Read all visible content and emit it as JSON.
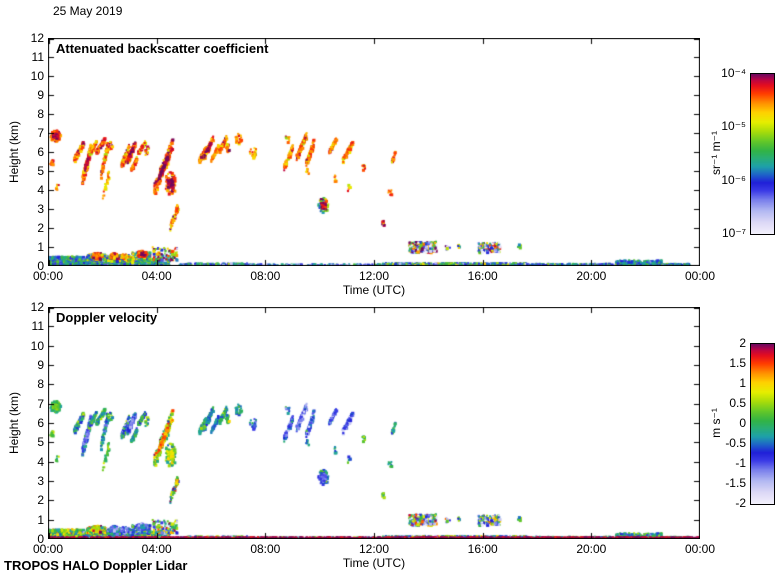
{
  "meta": {
    "date": "25 May 2019",
    "footer": "TROPOS HALO Doppler Lidar"
  },
  "chart_data": {
    "type": "heatmap",
    "panels": [
      {
        "title": "Attenuated backscatter coefficient",
        "xlabel": "Time (UTC)",
        "ylabel": "Height (km)",
        "value_field": "bs",
        "xlim_hours": [
          0,
          24
        ],
        "ylim_km": [
          0,
          12
        ],
        "x_ticks": [
          "00:00",
          "04:00",
          "08:00",
          "12:00",
          "16:00",
          "20:00",
          "00:00"
        ],
        "y_ticks": [
          "0",
          "1",
          "2",
          "3",
          "4",
          "5",
          "6",
          "7",
          "8",
          "9",
          "10",
          "11",
          "12"
        ],
        "colorbar": {
          "unit": "sr⁻¹ m⁻¹",
          "scale": "log10",
          "tick_labels": [
            "10⁻⁴",
            "10⁻⁵",
            "10⁻⁶",
            "10⁻⁷"
          ],
          "vmin": -7,
          "vmax": -4
        }
      },
      {
        "title": "Doppler velocity",
        "xlabel": "Time (UTC)",
        "ylabel": "Height (km)",
        "value_field": "vel",
        "xlim_hours": [
          0,
          24
        ],
        "ylim_km": [
          0,
          12
        ],
        "x_ticks": [
          "00:00",
          "04:00",
          "08:00",
          "12:00",
          "16:00",
          "20:00",
          "00:00"
        ],
        "y_ticks": [
          "0",
          "1",
          "2",
          "3",
          "4",
          "5",
          "6",
          "7",
          "8",
          "9",
          "10",
          "11",
          "12"
        ],
        "colorbar": {
          "unit": "m s⁻¹",
          "scale": "linear",
          "tick_labels": [
            "2",
            "1.5",
            "1",
            "0.5",
            "0",
            "-0.5",
            "-1",
            "-1.5",
            "-2"
          ],
          "vmin": -2,
          "vmax": 2
        }
      }
    ],
    "colormap_stops": [
      [
        0.0,
        "#f2f0fc"
      ],
      [
        0.07,
        "#dcd8f6"
      ],
      [
        0.14,
        "#b4baf2"
      ],
      [
        0.21,
        "#7a80ec"
      ],
      [
        0.27,
        "#3a3ae6"
      ],
      [
        0.32,
        "#2020d8"
      ],
      [
        0.37,
        "#1e64c8"
      ],
      [
        0.42,
        "#1ea0aa"
      ],
      [
        0.47,
        "#28ae78"
      ],
      [
        0.52,
        "#32b446"
      ],
      [
        0.58,
        "#64c828"
      ],
      [
        0.64,
        "#a8dc0a"
      ],
      [
        0.7,
        "#e6ee00"
      ],
      [
        0.76,
        "#ffd200"
      ],
      [
        0.82,
        "#ff9000"
      ],
      [
        0.88,
        "#ff3c00"
      ],
      [
        0.93,
        "#e60e1e"
      ],
      [
        0.97,
        "#b40448"
      ],
      [
        1.0,
        "#70085e"
      ]
    ],
    "features": [
      {
        "k": "b",
        "box": [
          0.08,
          6.55,
          0.45,
          7.15
        ],
        "n": 110,
        "bs": -4.4,
        "vel": 0.0,
        "velv": 0.3,
        "core": {
          "n": 28,
          "bs": -4.05,
          "vel": 0.4
        }
      },
      {
        "k": "p",
        "box": [
          0.08,
          5.25,
          0.2,
          5.65
        ],
        "n": 14,
        "bs": -4.5,
        "vel": 0.2
      },
      {
        "k": "p",
        "box": [
          0.28,
          4.0,
          0.42,
          4.3
        ],
        "n": 9,
        "bs": -4.5,
        "vel": 0.2
      },
      {
        "k": "s",
        "box": [
          0.95,
          5.55,
          1.3,
          6.45
        ],
        "n": 75,
        "bs": -4.45,
        "vel": -0.2,
        "velv": 0.4
      },
      {
        "k": "s",
        "box": [
          1.25,
          4.5,
          1.6,
          6.3
        ],
        "n": 115,
        "bs": -4.5,
        "vel": -0.7,
        "velv": 0.5,
        "core": {
          "n": 22,
          "bs": -4.1,
          "vel": -1.1
        }
      },
      {
        "k": "s",
        "box": [
          1.5,
          5.85,
          1.78,
          6.5
        ],
        "n": 55,
        "bs": -4.55,
        "vel": -0.1
      },
      {
        "k": "s",
        "box": [
          1.78,
          6.0,
          2.08,
          6.68
        ],
        "n": 70,
        "bs": -4.4,
        "vel": -0.2
      },
      {
        "k": "s",
        "box": [
          1.95,
          4.85,
          2.18,
          6.3
        ],
        "n": 60,
        "bs": -4.55,
        "vel": -0.4
      },
      {
        "k": "s",
        "box": [
          2.0,
          3.5,
          2.25,
          4.95
        ],
        "n": 28,
        "bs": -4.7,
        "vel": 0.2
      },
      {
        "k": "p",
        "box": [
          2.15,
          6.15,
          2.38,
          6.55
        ],
        "n": 20,
        "bs": -4.5,
        "vel": -0.1
      },
      {
        "k": "s",
        "box": [
          2.7,
          5.3,
          3.02,
          6.35
        ],
        "n": 85,
        "bs": -4.45,
        "vel": -0.3,
        "velv": 0.5
      },
      {
        "k": "s",
        "box": [
          2.9,
          5.45,
          3.22,
          6.5
        ],
        "n": 90,
        "bs": -4.4,
        "vel": -0.9,
        "core": {
          "n": 24,
          "bs": -4.05,
          "vel": -1.3
        }
      },
      {
        "k": "s",
        "box": [
          3.05,
          5.0,
          3.28,
          5.7
        ],
        "n": 42,
        "bs": -4.55,
        "vel": -0.3
      },
      {
        "k": "s",
        "box": [
          3.3,
          5.9,
          3.58,
          6.5
        ],
        "n": 58,
        "bs": -4.5,
        "vel": -0.2
      },
      {
        "k": "p",
        "box": [
          3.55,
          5.8,
          3.72,
          6.3
        ],
        "n": 22,
        "bs": -4.55,
        "vel": 0.0
      },
      {
        "k": "s",
        "box": [
          3.9,
          4.0,
          4.58,
          6.35
        ],
        "n": 160,
        "bs": -4.4,
        "vel": 0.6,
        "velv": 0.6,
        "core": {
          "n": 48,
          "bs": -4.0,
          "vel": 1.3
        }
      },
      {
        "k": "b",
        "box": [
          4.3,
          3.75,
          4.72,
          4.95
        ],
        "n": 100,
        "bs": -4.35,
        "vel": 0.3,
        "velv": 0.5,
        "core": {
          "n": 32,
          "bs": -4.0,
          "vel": 0.8
        }
      },
      {
        "k": "s",
        "box": [
          4.5,
          2.0,
          4.78,
          3.15
        ],
        "n": 48,
        "bs": -4.5,
        "vel": 0.6,
        "velv": 0.7
      },
      {
        "k": "s",
        "box": [
          5.55,
          5.5,
          5.82,
          6.25
        ],
        "n": 52,
        "bs": -4.5,
        "vel": -0.1
      },
      {
        "k": "s",
        "box": [
          5.72,
          5.7,
          6.08,
          6.72
        ],
        "n": 90,
        "bs": -4.4,
        "vel": -0.2,
        "core": {
          "n": 18,
          "bs": -4.1,
          "vel": -0.5
        }
      },
      {
        "k": "s",
        "box": [
          6.0,
          5.55,
          6.28,
          6.3
        ],
        "n": 58,
        "bs": -4.5,
        "vel": -0.4
      },
      {
        "k": "s",
        "box": [
          6.3,
          6.05,
          6.58,
          6.78
        ],
        "n": 58,
        "bs": -4.5,
        "vel": -0.1
      },
      {
        "k": "p",
        "box": [
          6.5,
          5.9,
          6.68,
          6.42
        ],
        "n": 24,
        "bs": -4.55,
        "vel": 0.0
      },
      {
        "k": "p",
        "box": [
          6.9,
          6.4,
          7.12,
          6.98
        ],
        "n": 32,
        "bs": -4.5,
        "vel": -0.2
      },
      {
        "k": "p",
        "box": [
          7.42,
          5.7,
          7.68,
          6.3
        ],
        "n": 32,
        "bs": -4.6,
        "vel": -0.6,
        "velv": 0.5
      },
      {
        "k": "s",
        "box": [
          8.68,
          5.15,
          9.02,
          6.25
        ],
        "n": 65,
        "bs": -4.55,
        "vel": -0.8,
        "velv": 0.4
      },
      {
        "k": "p",
        "box": [
          8.72,
          6.5,
          8.92,
          6.92
        ],
        "n": 16,
        "bs": -4.6,
        "vel": -0.5
      },
      {
        "k": "s",
        "box": [
          9.15,
          5.7,
          9.52,
          6.88
        ],
        "n": 105,
        "bs": -4.45,
        "vel": -1.1,
        "velv": 0.4
      },
      {
        "k": "s",
        "box": [
          9.5,
          5.35,
          9.78,
          6.5
        ],
        "n": 85,
        "bs": -4.5,
        "vel": -0.9,
        "velv": 0.5
      },
      {
        "k": "p",
        "box": [
          9.5,
          4.82,
          9.64,
          5.18
        ],
        "n": 12,
        "bs": -4.6,
        "vel": -0.3
      },
      {
        "k": "b",
        "box": [
          9.95,
          2.82,
          10.32,
          3.58
        ],
        "n": 95,
        "bs": -5.3,
        "bsv": 0.8,
        "vel": -0.6,
        "velv": 0.5,
        "core": {
          "n": 34,
          "bs": -4.05,
          "vel": -1.0
        }
      },
      {
        "k": "s",
        "box": [
          10.35,
          6.0,
          10.62,
          6.68
        ],
        "n": 58,
        "bs": -4.5,
        "vel": -0.9
      },
      {
        "k": "p",
        "box": [
          10.5,
          4.42,
          10.64,
          4.78
        ],
        "n": 10,
        "bs": -4.55,
        "vel": -0.3
      },
      {
        "k": "s",
        "box": [
          10.85,
          5.55,
          11.22,
          6.48
        ],
        "n": 90,
        "bs": -4.5,
        "vel": -1.0,
        "velv": 0.4
      },
      {
        "k": "p",
        "box": [
          11.0,
          3.92,
          11.14,
          4.28
        ],
        "n": 9,
        "bs": -4.6,
        "vel": -0.2
      },
      {
        "k": "p",
        "box": [
          11.55,
          5.02,
          11.7,
          5.38
        ],
        "n": 11,
        "bs": -4.5,
        "vel": 0.1
      },
      {
        "k": "p",
        "box": [
          12.25,
          2.1,
          12.45,
          2.45
        ],
        "n": 13,
        "bs": -4.1,
        "vel": 0.5
      },
      {
        "k": "p",
        "box": [
          12.52,
          3.68,
          12.66,
          4.05
        ],
        "n": 9,
        "bs": -4.5,
        "vel": -0.2
      },
      {
        "k": "s",
        "box": [
          12.65,
          5.45,
          12.8,
          6.05
        ],
        "n": 20,
        "bs": -4.55,
        "vel": -0.3
      },
      {
        "k": "l",
        "box": [
          0.0,
          0.02,
          1.3,
          0.5
        ],
        "n": 600,
        "bs": -5.75,
        "bsv": 0.35,
        "vel": 0.25,
        "velv": 0.55
      },
      {
        "k": "l",
        "box": [
          1.25,
          0.02,
          4.45,
          0.38
        ],
        "n": 750,
        "bs": -5.7,
        "bsv": 0.35,
        "vel": -0.2,
        "velv": 0.7
      },
      {
        "k": "l",
        "box": [
          1.4,
          0.3,
          2.12,
          0.62
        ],
        "n": 190,
        "bs": -5.6,
        "bsv": 0.5,
        "vel": 0.5,
        "velv": 0.6
      },
      {
        "k": "l",
        "box": [
          2.18,
          0.26,
          3.02,
          0.58
        ],
        "n": 200,
        "bs": -5.6,
        "bsv": 0.5,
        "vel": -0.7,
        "velv": 0.5
      },
      {
        "k": "l",
        "box": [
          3.1,
          0.3,
          3.75,
          0.72
        ],
        "n": 180,
        "bs": -5.55,
        "bsv": 0.5,
        "vel": -0.6,
        "velv": 0.6
      },
      {
        "k": "b",
        "box": [
          1.62,
          0.35,
          2.02,
          0.72
        ],
        "n": 80,
        "bs": -4.35,
        "vel": 0.9,
        "velv": 0.5
      },
      {
        "k": "b",
        "box": [
          2.28,
          0.32,
          2.6,
          0.68
        ],
        "n": 60,
        "bs": -4.4,
        "vel": -0.9,
        "velv": 0.4
      },
      {
        "k": "b",
        "box": [
          2.62,
          0.36,
          2.98,
          0.62
        ],
        "n": 50,
        "bs": -4.6,
        "vel": -1.0,
        "velv": 0.4
      },
      {
        "k": "b",
        "box": [
          3.28,
          0.45,
          3.62,
          0.82
        ],
        "n": 65,
        "bs": -4.2,
        "vel": -0.8,
        "velv": 0.5
      },
      {
        "k": "p",
        "box": [
          3.0,
          0.18,
          3.2,
          0.5
        ],
        "n": 26,
        "bs": -4.8,
        "vel": -0.5
      },
      {
        "k": "l",
        "box": [
          3.85,
          0.3,
          4.78,
          1.0
        ],
        "n": 95,
        "bs": -5.3,
        "bsv": 0.9,
        "vel": -0.2,
        "velv": 0.9
      },
      {
        "k": "n",
        "box": [
          4.8,
          0.0,
          7.35,
          0.14
        ],
        "n": 170,
        "bs": -5.8,
        "bsv": 0.4,
        "vel": -0.1,
        "velv": 0.7
      },
      {
        "k": "n",
        "box": [
          7.35,
          0.0,
          12.3,
          0.1
        ],
        "n": 130,
        "bs": -5.9,
        "bsv": 0.4,
        "vel": -0.1,
        "velv": 0.7
      },
      {
        "k": "n",
        "box": [
          12.3,
          0.0,
          17.6,
          0.16
        ],
        "n": 440,
        "bs": -5.7,
        "bsv": 0.5,
        "vel": -0.1,
        "velv": 0.8
      },
      {
        "k": "n",
        "box": [
          17.6,
          0.0,
          20.85,
          0.12
        ],
        "n": 170,
        "bs": -5.85,
        "bsv": 0.4,
        "vel": -0.1,
        "velv": 0.6
      },
      {
        "k": "l",
        "box": [
          20.9,
          0.0,
          22.6,
          0.3
        ],
        "n": 280,
        "bs": -5.75,
        "bsv": 0.3,
        "vel": -0.1,
        "velv": 0.5
      },
      {
        "k": "n",
        "box": [
          22.6,
          0.0,
          23.6,
          0.12
        ],
        "n": 75,
        "bs": -5.85,
        "bsv": 0.4,
        "vel": -0.1,
        "velv": 0.6
      },
      {
        "k": "n",
        "box": [
          13.3,
          0.72,
          14.28,
          1.28
        ],
        "n": 240,
        "bs": -5.4,
        "bsv": 1.1,
        "vel": -0.1,
        "velv": 1.1
      },
      {
        "k": "n",
        "box": [
          15.85,
          0.72,
          16.62,
          1.22
        ],
        "n": 160,
        "bs": -5.4,
        "bsv": 1.1,
        "vel": -0.1,
        "velv": 1.1
      },
      {
        "k": "p",
        "box": [
          14.55,
          0.85,
          14.8,
          1.12
        ],
        "n": 15,
        "bs": -5.3,
        "bsv": 1.0,
        "vel": 0.0,
        "velv": 1.0
      },
      {
        "k": "p",
        "box": [
          15.05,
          0.9,
          15.2,
          1.12
        ],
        "n": 9,
        "bs": -5.3,
        "bsv": 1.0,
        "vel": 0.0,
        "velv": 1.0
      },
      {
        "k": "p",
        "box": [
          17.28,
          0.95,
          17.42,
          1.18
        ],
        "n": 8,
        "bs": -5.4,
        "vel": 0.1
      },
      {
        "k": "n",
        "box": [
          0.0,
          0.0,
          24.0,
          0.1
        ],
        "n": 1500,
        "bs": null,
        "vel": 1.9,
        "velv": 0.12
      }
    ]
  }
}
